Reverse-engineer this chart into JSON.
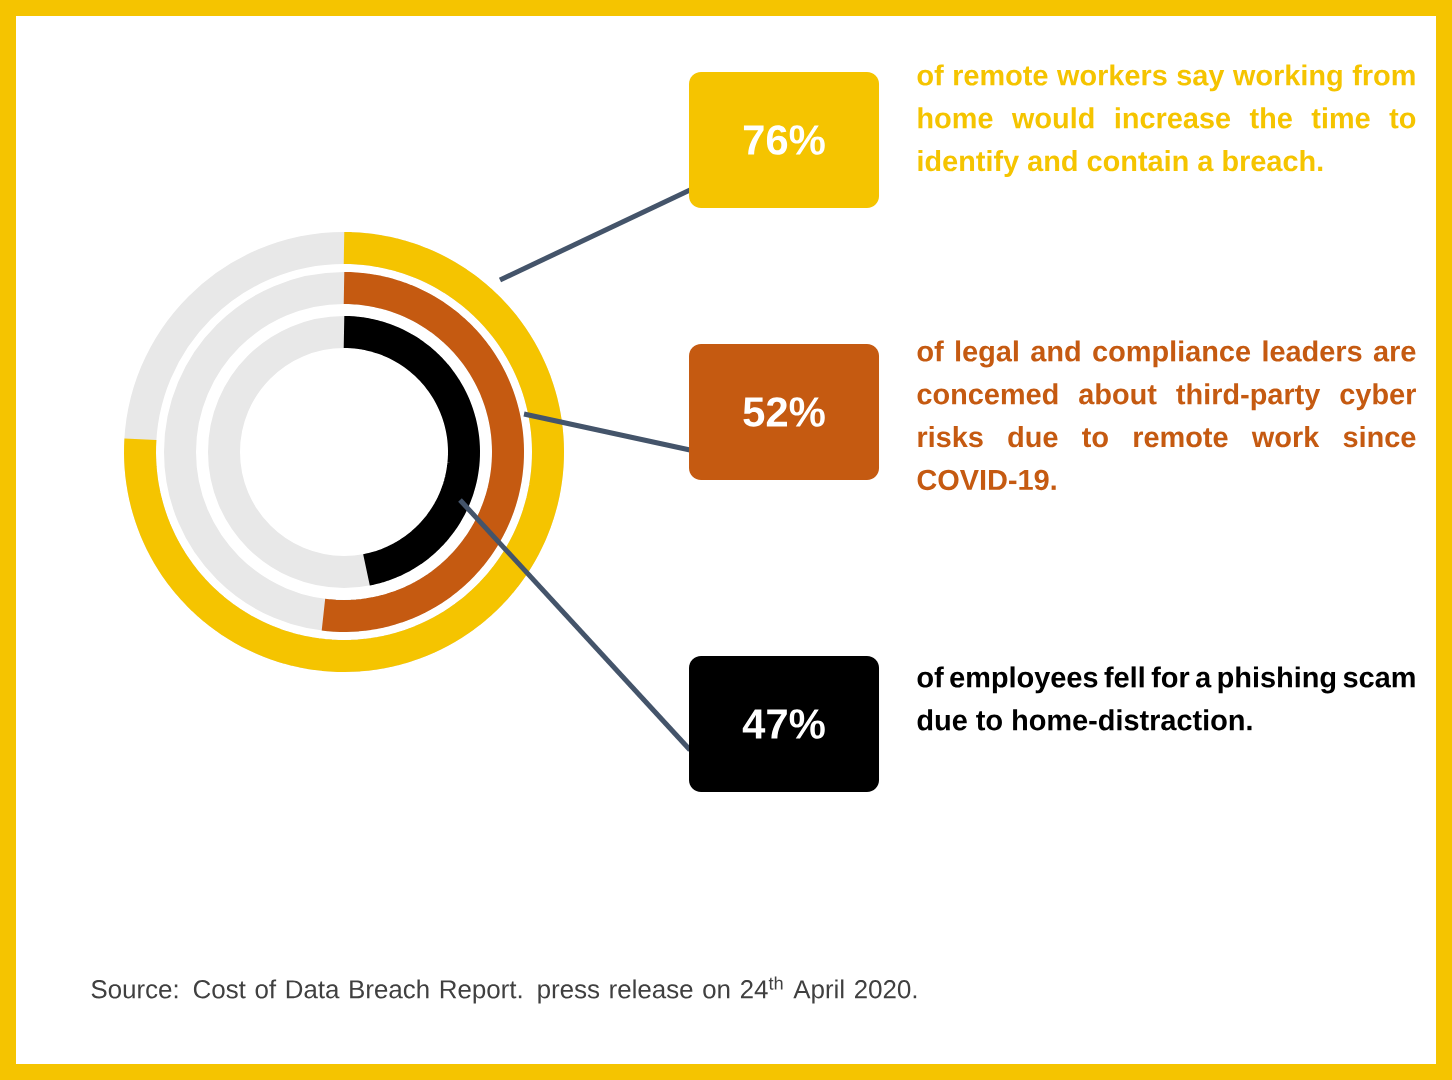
{
  "chart_data": {
    "type": "other",
    "categories": [
      "of remote workers say working from home would increase the time to identify and contain a breach.",
      "of legal and compliance leaders are concemed about third-party cyber risks due to remote work since COVID-19.",
      "of employees fell for a phishing scam due to home-distraction."
    ],
    "values": [
      76,
      52,
      47
    ],
    "value_labels": [
      "76%",
      "52%",
      "47%"
    ],
    "colors": [
      "#f5c400",
      "#c55a11",
      "#000000"
    ],
    "annotations": [
      "Source: Cost of Data Breach Report. press release on 24$^{th}$ April 2020."
    ]
  }
}
